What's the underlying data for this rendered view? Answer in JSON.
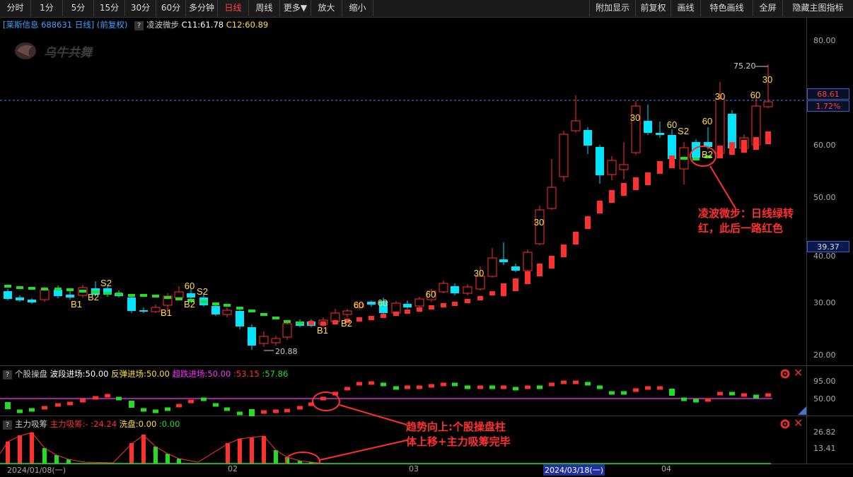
{
  "toolbar": {
    "left": [
      "分时",
      "1分",
      "5分",
      "15分",
      "30分",
      "60分",
      "多分钟",
      "日线",
      "周线",
      "更多▼",
      "放大",
      "缩小"
    ],
    "right": [
      "附加显示",
      "前复权",
      "画线",
      "特色画线",
      "全屏",
      "隐藏主图指标"
    ],
    "active": "日线"
  },
  "main": {
    "stock": "[莱斯信息 688631 日线]",
    "adjust": "(前复权)",
    "indicator": "凌波微步",
    "c1": "C11:61.78",
    "c2": "C12:60.89",
    "logo_text": "乌牛共舞",
    "price_levels": [
      "80.00",
      "60.00",
      "50.00",
      "40.00",
      "30.00",
      "20.00"
    ],
    "current_price": "68.61",
    "current_pct": "1.72%",
    "cursor_price": "39.37",
    "high_label": "75.20",
    "low_label": "20.88",
    "annotation": [
      "凌波微步：日线绿转",
      "红，此后一路红色"
    ]
  },
  "sub1": {
    "name": "个股操盘",
    "l1": "波段进场:50.00",
    "l2": "反弹进场:50.00",
    "l3": "超跌进场:50.00",
    "v1": ":53.15",
    "v2": ":57.86",
    "levels": [
      "95.00",
      "50.00"
    ]
  },
  "sub2": {
    "name": "主力吸筹",
    "l1": "主力吸筹:-",
    "v1": ":24.24",
    "l2": "洗盘:0.00",
    "v2": ":0.00",
    "levels": [
      "26.82",
      "13.41"
    ]
  },
  "annotation2": [
    "趋势向上:个股操盘柱",
    "体上移+主力吸筹完毕"
  ],
  "dates": [
    "2024/01/08(一)",
    "02",
    "03",
    "2024/03/18(一)",
    "04"
  ],
  "colors": {
    "up": "#ff3030",
    "down": "#00e5ff",
    "green": "#22dd22",
    "yellow": "#ffe040",
    "magenta": "#ff30ff"
  }
}
